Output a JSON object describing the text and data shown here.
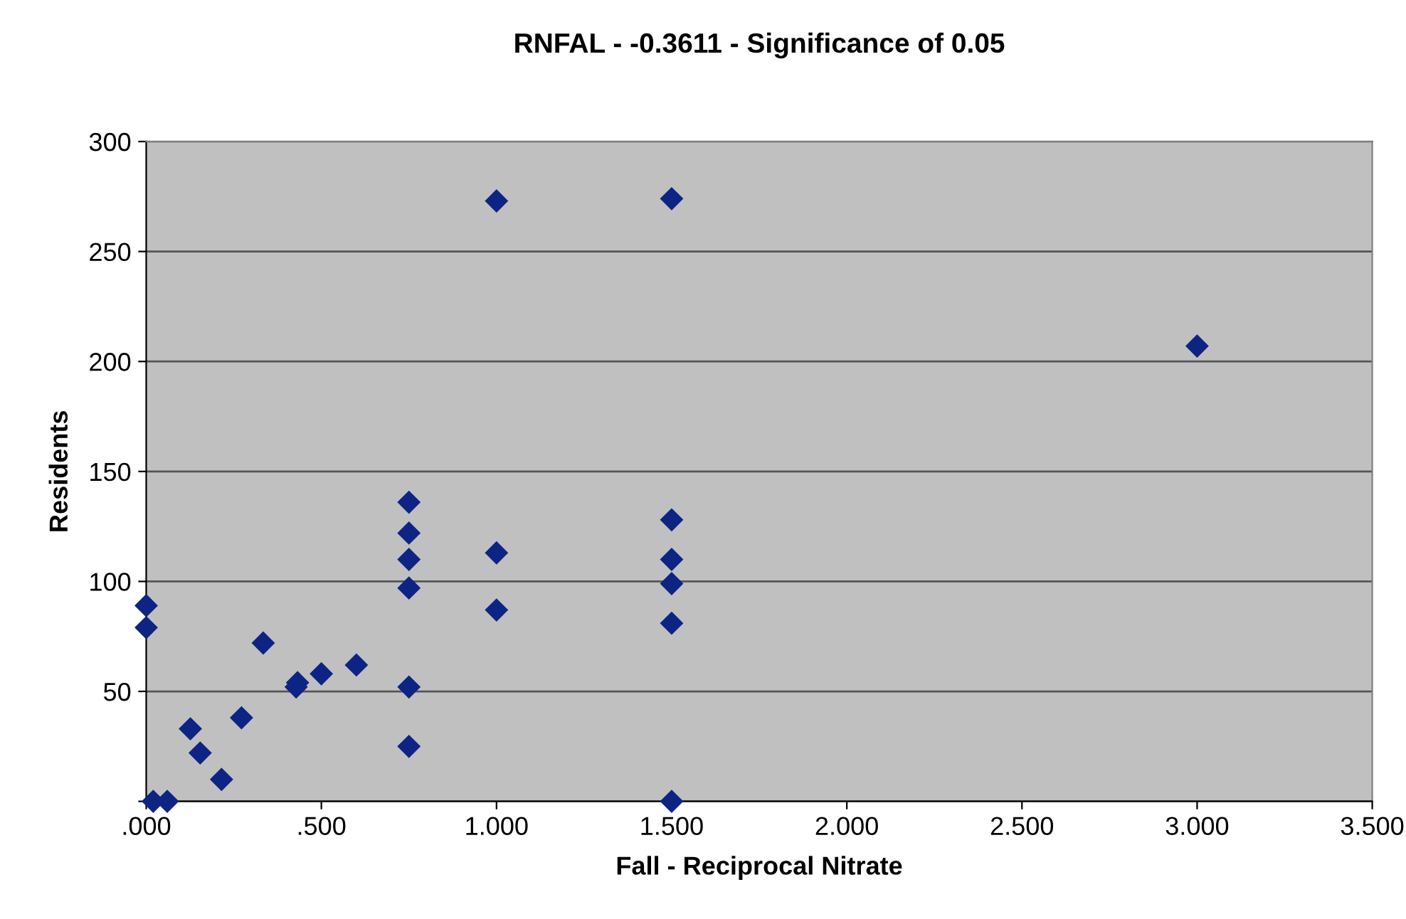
{
  "chart_data": {
    "type": "scatter",
    "title": "RNFAL - -0.3611 - Significance of 0.05",
    "xlabel": "Fall - Reciprocal Nitrate",
    "ylabel": "Residents",
    "series": [
      {
        "color": "#0d2484",
        "x": [
          0,
          0,
          0.02,
          0.06,
          0.126,
          0.154,
          0.215,
          0.272,
          0.334,
          0.428,
          0.432,
          0.5,
          0.6,
          0.75,
          0.75,
          0.75,
          0.75,
          0.75,
          0.75,
          1.0,
          1.0,
          1.0,
          1.5,
          1.5,
          1.5,
          1.5,
          1.5,
          1.5,
          3.0
        ],
        "values": [
          89,
          79,
          0,
          0,
          33,
          22,
          10,
          38,
          72,
          52,
          54,
          58,
          62,
          136,
          122,
          110,
          97,
          52,
          25,
          273,
          113,
          87,
          274,
          128,
          110,
          99,
          81,
          0,
          207
        ]
      }
    ],
    "xlim": [
      0,
      3.5
    ],
    "ylim": [
      0,
      300
    ],
    "xticks": [
      {
        "value": 0,
        "label": ".000"
      },
      {
        "value": 0.5,
        "label": ".500"
      },
      {
        "value": 1.0,
        "label": "1.000"
      },
      {
        "value": 1.5,
        "label": "1.500"
      },
      {
        "value": 2.0,
        "label": "2.000"
      },
      {
        "value": 2.5,
        "label": "2.500"
      },
      {
        "value": 3.0,
        "label": "3.000"
      },
      {
        "value": 3.5,
        "label": "3.500"
      }
    ],
    "yticks": [
      {
        "value": 0,
        "label": null
      },
      50,
      100,
      150,
      200,
      250,
      300
    ],
    "grid": "y",
    "marker": "diamond"
  }
}
